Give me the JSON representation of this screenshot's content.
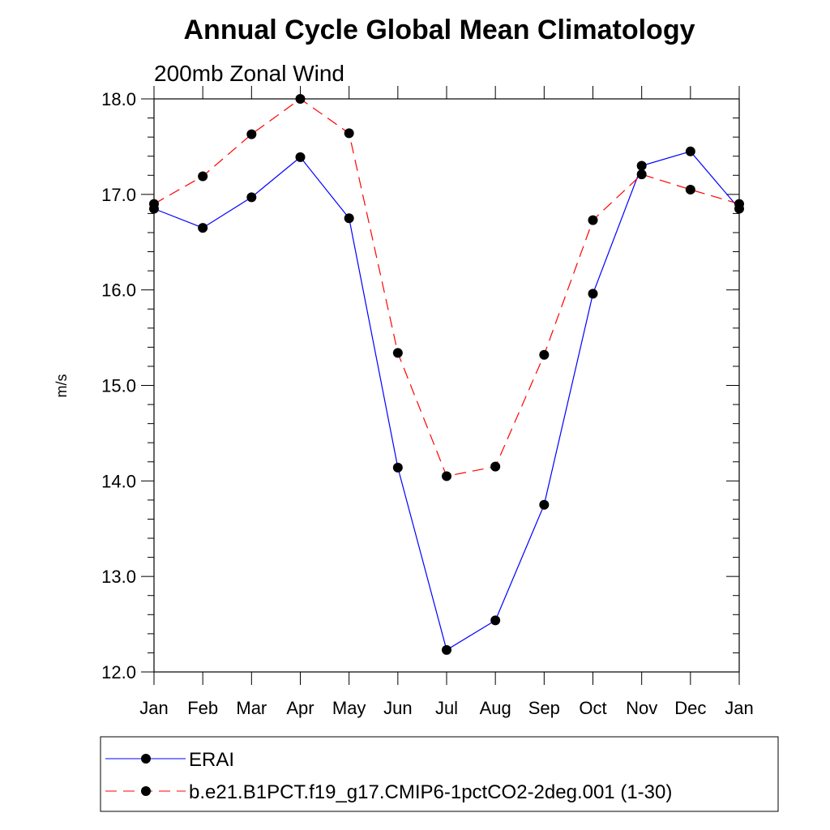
{
  "chart_data": {
    "type": "line",
    "title": "Annual Cycle Global Mean Climatology",
    "subtitle": "200mb Zonal Wind",
    "xlabel": "",
    "ylabel": "m/s",
    "categories": [
      "Jan",
      "Feb",
      "Mar",
      "Apr",
      "May",
      "Jun",
      "Jul",
      "Aug",
      "Sep",
      "Oct",
      "Nov",
      "Dec",
      "Jan"
    ],
    "ylim": [
      12.0,
      18.0
    ],
    "yticks": [
      "12.0",
      "13.0",
      "14.0",
      "15.0",
      "16.0",
      "17.0",
      "18.0"
    ],
    "grid": false,
    "legend_position": "bottom",
    "series": [
      {
        "name": "ERAI",
        "color": "#0000ff",
        "dash": "solid",
        "values": [
          16.85,
          16.65,
          16.97,
          17.39,
          16.75,
          14.14,
          12.23,
          12.54,
          13.75,
          15.96,
          17.3,
          17.45,
          16.85
        ]
      },
      {
        "name": "b.e21.B1PCT.f19_g17.CMIP6-1pctCO2-2deg.001 (1-30)",
        "color": "#ff0000",
        "dash": "dashed",
        "values": [
          16.9,
          17.19,
          17.63,
          18.0,
          17.64,
          15.34,
          14.05,
          14.15,
          15.32,
          16.73,
          17.21,
          17.05,
          16.9
        ]
      }
    ]
  }
}
